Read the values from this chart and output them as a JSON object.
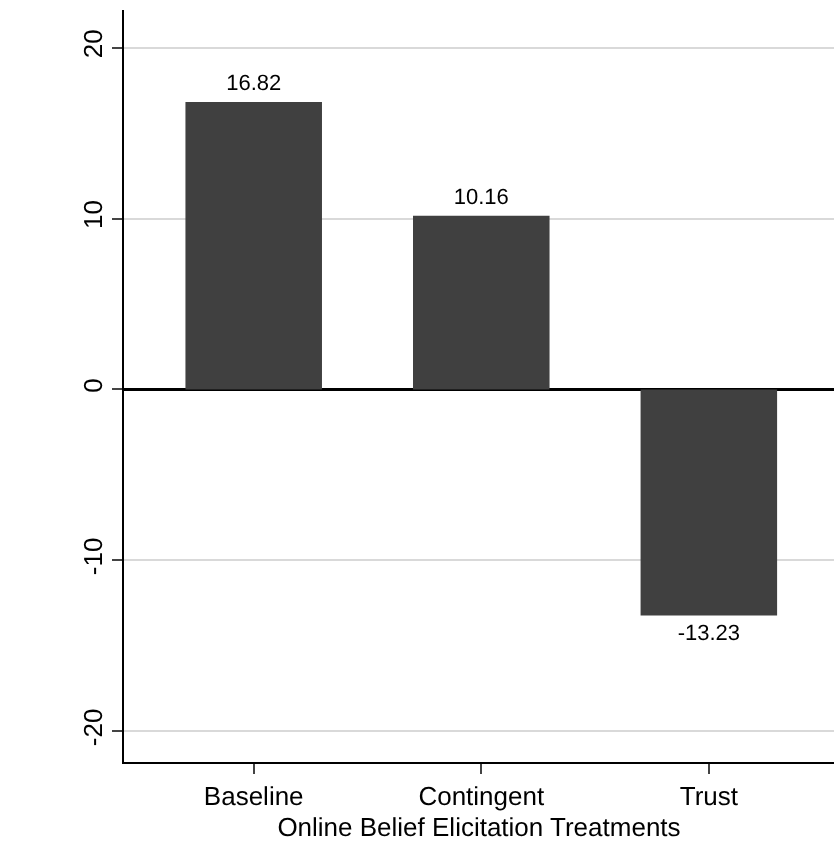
{
  "chart_data": {
    "type": "bar",
    "xlabel": "Online Belief Elicitation Treatments",
    "categories": [
      "Baseline",
      "Contingent",
      "Trust"
    ],
    "values": [
      16.82,
      10.16,
      -13.23
    ],
    "color": "#404040",
    "ylim": [
      -21.8,
      22.2
    ],
    "yticks": [
      -20,
      -10,
      0,
      10,
      20
    ],
    "grid": "y",
    "data_labels": true
  }
}
